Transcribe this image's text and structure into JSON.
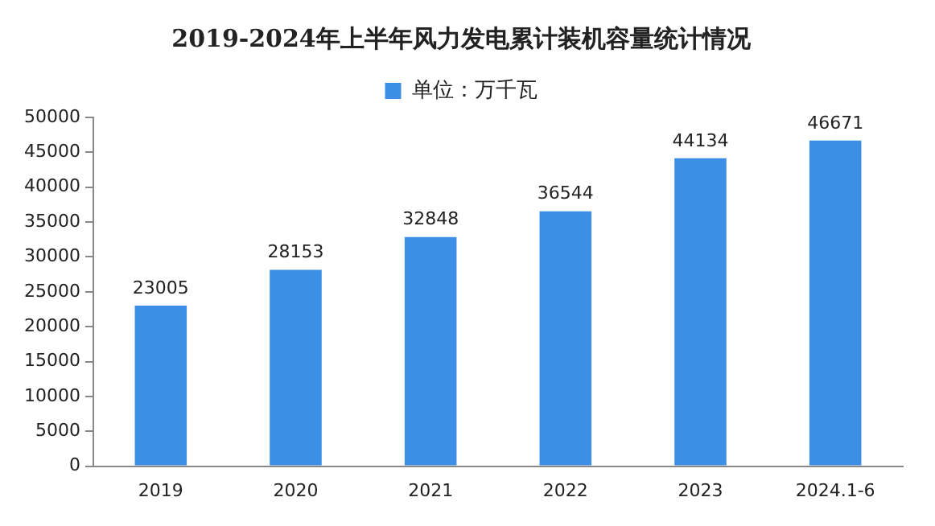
{
  "chart_data": {
    "type": "bar",
    "title": "2019-2024年上半年风力发电累计装机容量统计情况",
    "categories": [
      "2019",
      "2020",
      "2021",
      "2022",
      "2023",
      "2024.1-6"
    ],
    "series": [
      {
        "name": "单位：万千瓦",
        "color": "#3d8fe6",
        "values": [
          23005,
          28153,
          32848,
          36544,
          44134,
          46671
        ]
      }
    ],
    "ylim": [
      0,
      50000
    ],
    "yticks": [
      0,
      5000,
      10000,
      15000,
      20000,
      25000,
      30000,
      35000,
      40000,
      45000,
      50000
    ],
    "grid": false,
    "legend": "top",
    "data_labels": true
  }
}
